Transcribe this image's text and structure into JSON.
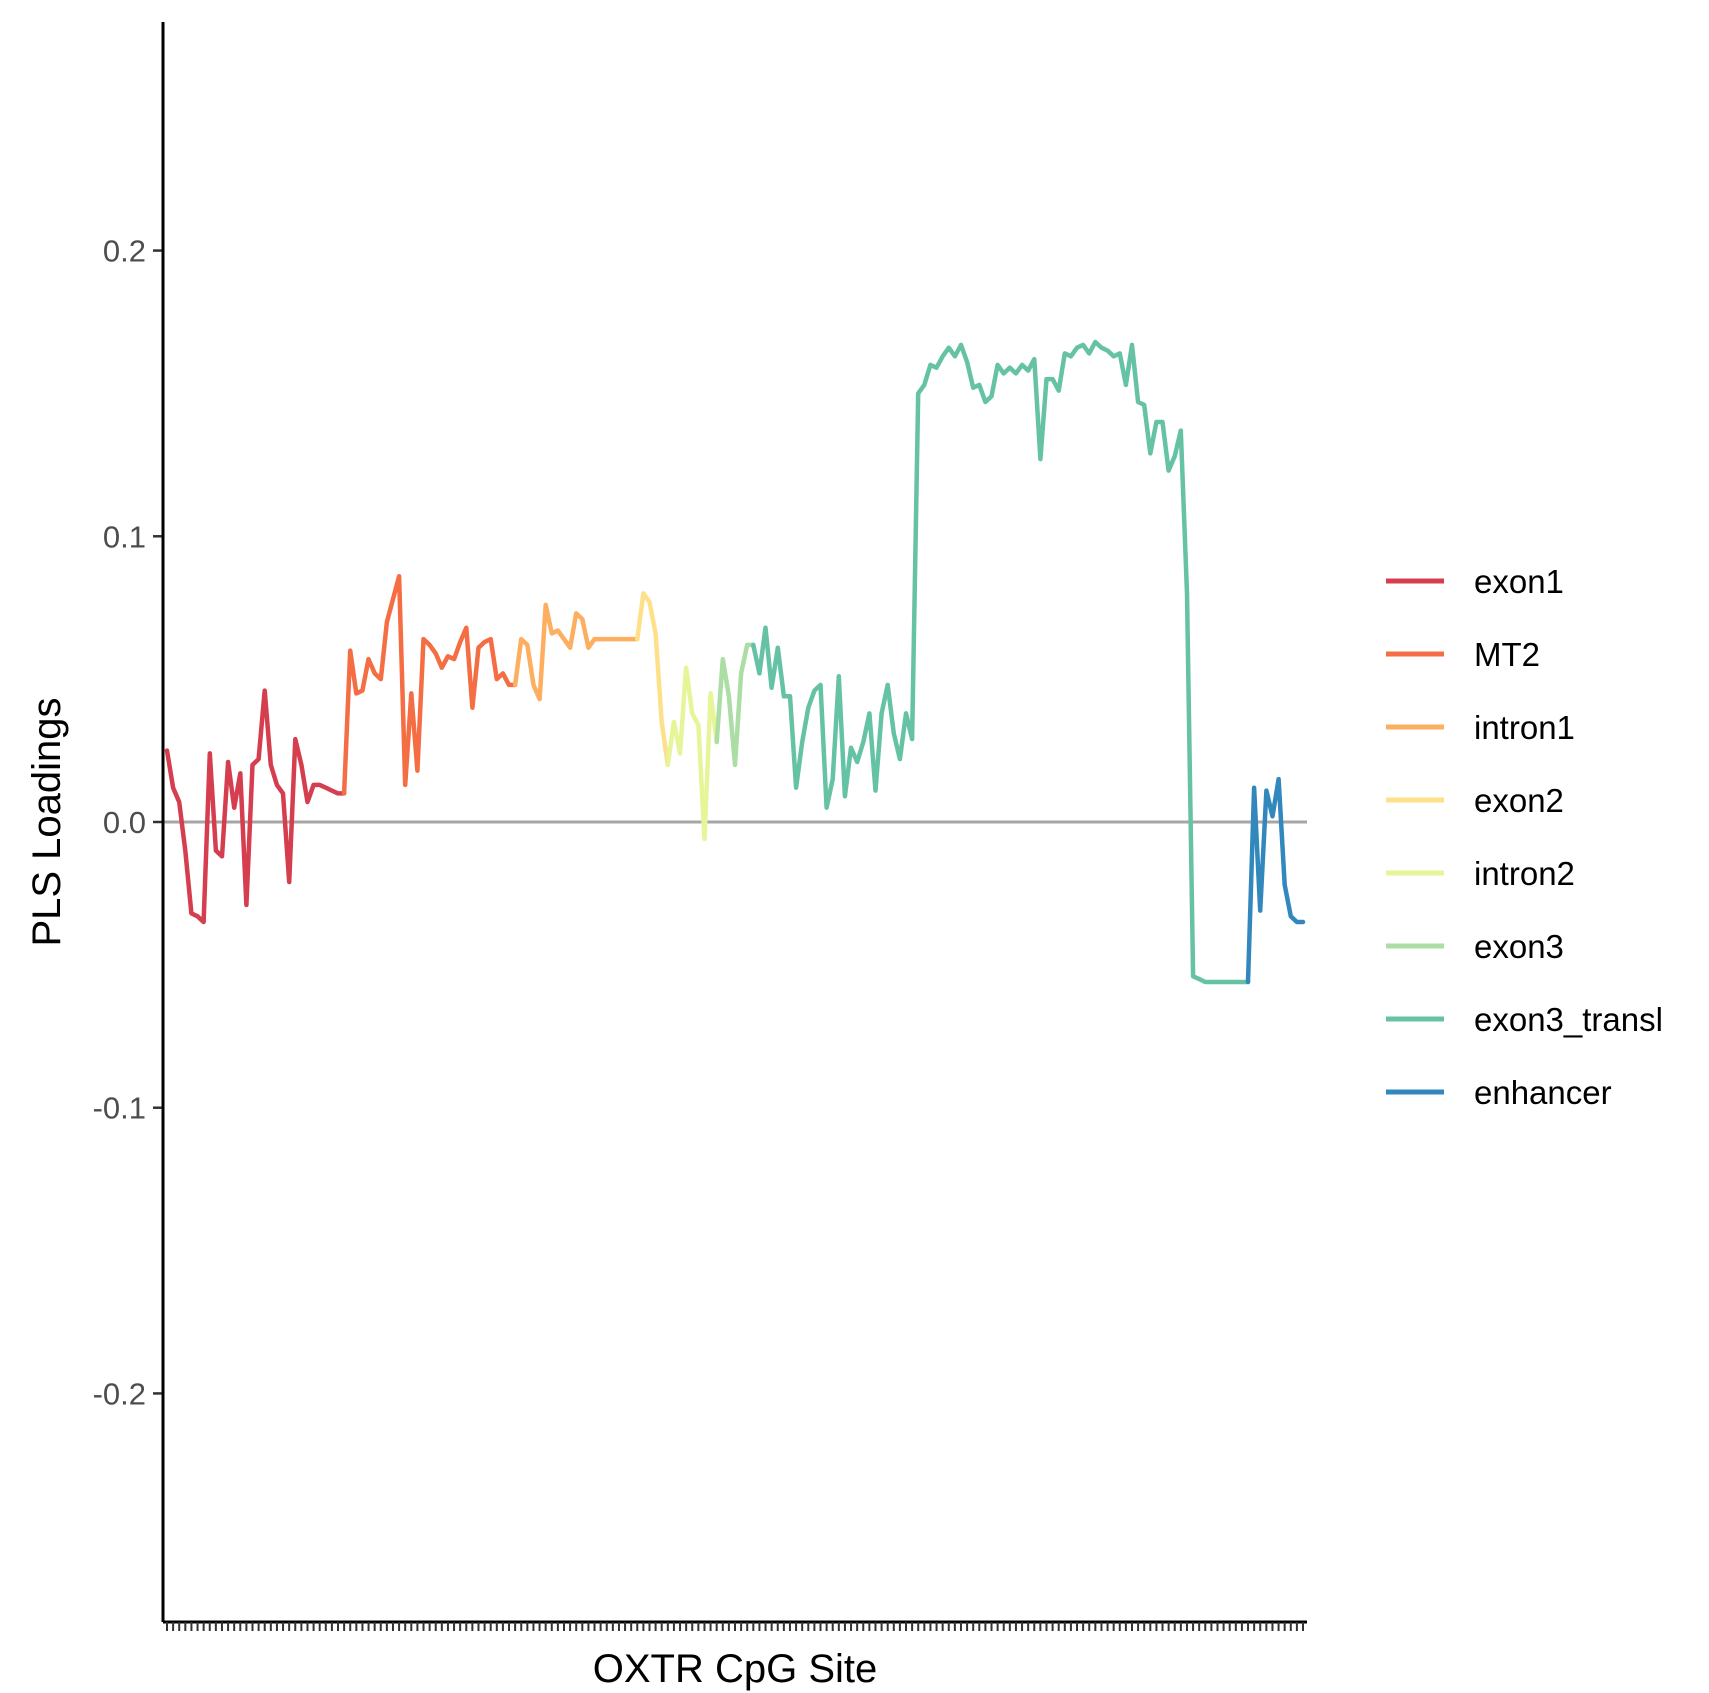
{
  "chart_data": {
    "type": "line",
    "title": "",
    "xlabel": "OXTR CpG Site",
    "ylabel": "PLS Loadings",
    "ylim": [
      -0.28,
      0.28
    ],
    "yticks": [
      -0.2,
      -0.1,
      0.0,
      0.1,
      0.2
    ],
    "ytick_labels": [
      "-0.2",
      "-0.1",
      "0.0",
      "0.1",
      "0.2"
    ],
    "x_tick_count": 187,
    "reference_line": {
      "y": 0,
      "color": "#a6a6a6"
    },
    "grid": false,
    "legend": {
      "position": "right"
    },
    "series": [
      {
        "name": "exon1",
        "color": "#d53e4f",
        "x": [
          1,
          2,
          3,
          4,
          5,
          6,
          7,
          8,
          9,
          10,
          11,
          12,
          13,
          14,
          15,
          16,
          17,
          18,
          19,
          20,
          21,
          22,
          23,
          24,
          25,
          26,
          27,
          28,
          29,
          30
        ],
        "values": [
          0.025,
          0.012,
          0.007,
          -0.01,
          -0.032,
          -0.033,
          -0.035,
          0.024,
          -0.01,
          -0.012,
          0.021,
          0.005,
          0.017,
          -0.029,
          0.02,
          0.022,
          0.046,
          0.02,
          0.013,
          0.01,
          -0.021,
          0.029,
          0.02,
          0.007,
          0.013,
          0.013,
          0.012,
          0.011,
          0.01,
          0.01
        ]
      },
      {
        "name": "MT2",
        "color": "#f46d43",
        "x": [
          30,
          31,
          32,
          33,
          34,
          35,
          36,
          37,
          38,
          39,
          40,
          41,
          42,
          43,
          44,
          45,
          46,
          47,
          48,
          49,
          50,
          51,
          52,
          53,
          54,
          55,
          56,
          57,
          58
        ],
        "values": [
          0.01,
          0.06,
          0.045,
          0.046,
          0.057,
          0.052,
          0.05,
          0.07,
          0.078,
          0.086,
          0.013,
          0.045,
          0.018,
          0.064,
          0.062,
          0.059,
          0.054,
          0.058,
          0.057,
          0.063,
          0.068,
          0.04,
          0.061,
          0.063,
          0.064,
          0.05,
          0.052,
          0.048,
          0.048
        ]
      },
      {
        "name": "intron1",
        "color": "#fdae61",
        "x": [
          58,
          59,
          60,
          61,
          62,
          63,
          64,
          65,
          66,
          67,
          68,
          69,
          70,
          71,
          72,
          73,
          74,
          75,
          76,
          77,
          78
        ],
        "values": [
          0.048,
          0.064,
          0.062,
          0.048,
          0.043,
          0.076,
          0.066,
          0.067,
          0.064,
          0.061,
          0.073,
          0.071,
          0.061,
          0.064,
          0.064,
          0.064,
          0.064,
          0.064,
          0.064,
          0.064,
          0.064
        ]
      },
      {
        "name": "exon2",
        "color": "#fee08b",
        "x": [
          78,
          79,
          80,
          81,
          82,
          83
        ],
        "values": [
          0.064,
          0.08,
          0.077,
          0.066,
          0.035,
          0.02
        ]
      },
      {
        "name": "intron2",
        "color": "#e6f598",
        "x": [
          83,
          84,
          85,
          86,
          87,
          88,
          89,
          90,
          91
        ],
        "values": [
          0.02,
          0.035,
          0.024,
          0.054,
          0.038,
          0.034,
          -0.006,
          0.045,
          0.028
        ]
      },
      {
        "name": "exon3",
        "color": "#abdda4",
        "x": [
          91,
          92,
          93,
          94,
          95,
          96,
          97
        ],
        "values": [
          0.028,
          0.057,
          0.044,
          0.02,
          0.052,
          0.062,
          0.062
        ]
      },
      {
        "name": "exon3_transl",
        "color": "#66c2a5",
        "x": [
          97,
          98,
          99,
          100,
          101,
          102,
          103,
          104,
          105,
          106,
          107,
          108,
          109,
          110,
          111,
          112,
          113,
          114,
          115,
          116,
          117,
          118,
          119,
          120,
          121,
          122,
          123,
          124,
          125,
          126,
          127,
          128,
          129,
          130,
          131,
          132,
          133,
          134,
          135,
          136,
          137,
          138,
          139,
          140,
          141,
          142,
          143,
          144,
          145,
          146,
          147,
          148,
          149,
          150,
          151,
          152,
          153,
          154,
          155,
          156,
          157,
          158,
          159,
          160,
          161,
          162,
          163,
          164,
          165,
          166,
          167,
          168,
          169,
          170,
          171,
          172,
          173,
          174,
          175,
          176,
          177,
          178
        ],
        "values": [
          0.062,
          0.052,
          0.068,
          0.047,
          0.061,
          0.044,
          0.044,
          0.012,
          0.028,
          0.04,
          0.046,
          0.048,
          0.005,
          0.015,
          0.051,
          0.009,
          0.026,
          0.021,
          0.028,
          0.038,
          0.011,
          0.038,
          0.048,
          0.031,
          0.022,
          0.038,
          0.029,
          0.15,
          0.153,
          0.16,
          0.159,
          0.163,
          0.166,
          0.163,
          0.167,
          0.161,
          0.152,
          0.153,
          0.147,
          0.149,
          0.16,
          0.157,
          0.159,
          0.157,
          0.16,
          0.158,
          0.162,
          0.127,
          0.155,
          0.155,
          0.151,
          0.164,
          0.163,
          0.166,
          0.167,
          0.164,
          0.168,
          0.166,
          0.165,
          0.163,
          0.164,
          0.153,
          0.167,
          0.147,
          0.146,
          0.129,
          0.14,
          0.14,
          0.123,
          0.128,
          0.137,
          0.08,
          -0.054,
          -0.055,
          -0.056,
          -0.056,
          -0.056,
          -0.056,
          -0.056,
          -0.056,
          -0.056,
          -0.056
        ]
      },
      {
        "name": "enhancer",
        "color": "#3288bd",
        "x": [
          178,
          179,
          180,
          181,
          182,
          183,
          184,
          185,
          186,
          187
        ],
        "values": [
          -0.056,
          0.012,
          -0.031,
          0.011,
          0.002,
          0.015,
          -0.022,
          -0.033,
          -0.035,
          -0.035
        ]
      }
    ]
  }
}
